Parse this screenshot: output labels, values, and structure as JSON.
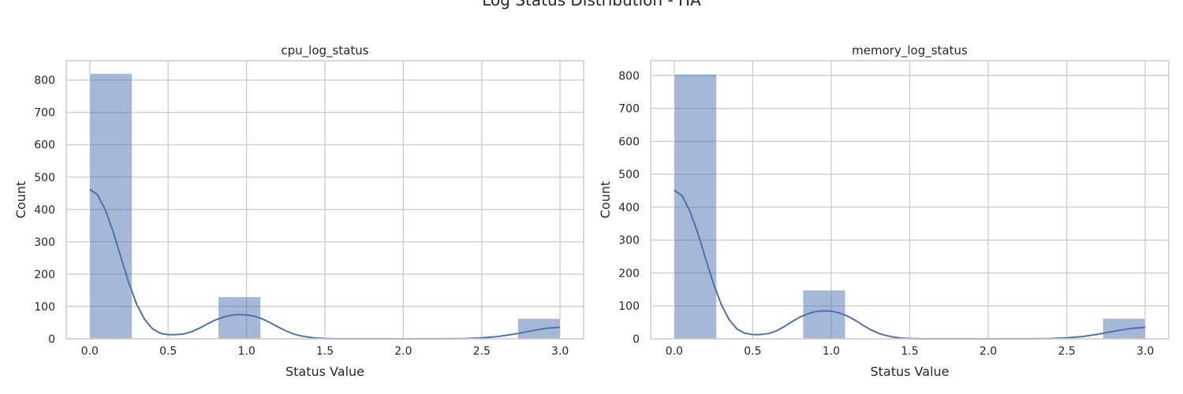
{
  "figure": {
    "suptitle": "Log Status Distribution - HA"
  },
  "colors": {
    "bar_fill": "#4c72b0",
    "bar_opacity": 0.5,
    "kde_line": "#4c72b0",
    "grid": "#cccccc",
    "spine": "#cccccc",
    "text": "#262626"
  },
  "chart_data": [
    {
      "type": "bar",
      "subtype": "histogram-with-kde",
      "title": "cpu_log_status",
      "xlabel": "Status Value",
      "ylabel": "Count",
      "xlim": [
        -0.15,
        3.15
      ],
      "ylim": [
        0,
        860
      ],
      "xticks": [
        0.0,
        0.5,
        1.0,
        1.5,
        2.0,
        2.5,
        3.0
      ],
      "xtick_labels": [
        "0.0",
        "0.5",
        "1.0",
        "1.5",
        "2.0",
        "2.5",
        "3.0"
      ],
      "yticks": [
        0,
        100,
        200,
        300,
        400,
        500,
        600,
        700,
        800
      ],
      "ytick_labels": [
        "0",
        "100",
        "200",
        "300",
        "400",
        "500",
        "600",
        "700",
        "800"
      ],
      "grid": true,
      "bins": [
        {
          "x0": 0.0,
          "x1": 0.27,
          "count": 820
        },
        {
          "x0": 0.82,
          "x1": 1.09,
          "count": 130
        },
        {
          "x0": 2.73,
          "x1": 3.0,
          "count": 63
        }
      ],
      "kde": {
        "x": [
          0.0,
          0.05,
          0.1,
          0.15,
          0.2,
          0.25,
          0.3,
          0.35,
          0.4,
          0.45,
          0.5,
          0.55,
          0.6,
          0.65,
          0.7,
          0.75,
          0.8,
          0.85,
          0.9,
          0.95,
          1.0,
          1.05,
          1.1,
          1.15,
          1.2,
          1.25,
          1.3,
          1.35,
          1.4,
          1.45,
          1.5,
          1.6,
          1.7,
          1.8,
          2.0,
          2.2,
          2.4,
          2.5,
          2.6,
          2.7,
          2.8,
          2.9,
          3.0
        ],
        "y": [
          462,
          445,
          398,
          330,
          250,
          172,
          106,
          60,
          31,
          17,
          13,
          13,
          15,
          22,
          33,
          46,
          58,
          67,
          73,
          75,
          74,
          70,
          62,
          50,
          37,
          25,
          15,
          9,
          5,
          2,
          1,
          0,
          0,
          0,
          0,
          0,
          1,
          3,
          7,
          14,
          23,
          32,
          36
        ]
      }
    },
    {
      "type": "bar",
      "subtype": "histogram-with-kde",
      "title": "memory_log_status",
      "xlabel": "Status Value",
      "ylabel": "Count",
      "xlim": [
        -0.15,
        3.15
      ],
      "ylim": [
        0,
        845
      ],
      "xticks": [
        0.0,
        0.5,
        1.0,
        1.5,
        2.0,
        2.5,
        3.0
      ],
      "xtick_labels": [
        "0.0",
        "0.5",
        "1.0",
        "1.5",
        "2.0",
        "2.5",
        "3.0"
      ],
      "yticks": [
        0,
        100,
        200,
        300,
        400,
        500,
        600,
        700,
        800
      ],
      "ytick_labels": [
        "0",
        "100",
        "200",
        "300",
        "400",
        "500",
        "600",
        "700",
        "800"
      ],
      "grid": true,
      "bins": [
        {
          "x0": 0.0,
          "x1": 0.27,
          "count": 804
        },
        {
          "x0": 0.82,
          "x1": 1.09,
          "count": 148
        },
        {
          "x0": 2.73,
          "x1": 3.0,
          "count": 62
        }
      ],
      "kde": {
        "x": [
          0.0,
          0.05,
          0.1,
          0.15,
          0.2,
          0.25,
          0.3,
          0.35,
          0.4,
          0.45,
          0.5,
          0.55,
          0.6,
          0.65,
          0.7,
          0.75,
          0.8,
          0.85,
          0.9,
          0.95,
          1.0,
          1.05,
          1.1,
          1.15,
          1.2,
          1.25,
          1.3,
          1.35,
          1.4,
          1.45,
          1.5,
          1.6,
          1.7,
          1.8,
          2.0,
          2.2,
          2.4,
          2.5,
          2.6,
          2.7,
          2.8,
          2.9,
          3.0
        ],
        "y": [
          452,
          435,
          388,
          322,
          244,
          168,
          104,
          58,
          30,
          17,
          13,
          13,
          16,
          24,
          37,
          52,
          66,
          76,
          83,
          85,
          84,
          79,
          70,
          57,
          42,
          28,
          17,
          10,
          5,
          2,
          1,
          0,
          0,
          0,
          0,
          0,
          1,
          3,
          7,
          14,
          23,
          31,
          35
        ]
      }
    }
  ]
}
